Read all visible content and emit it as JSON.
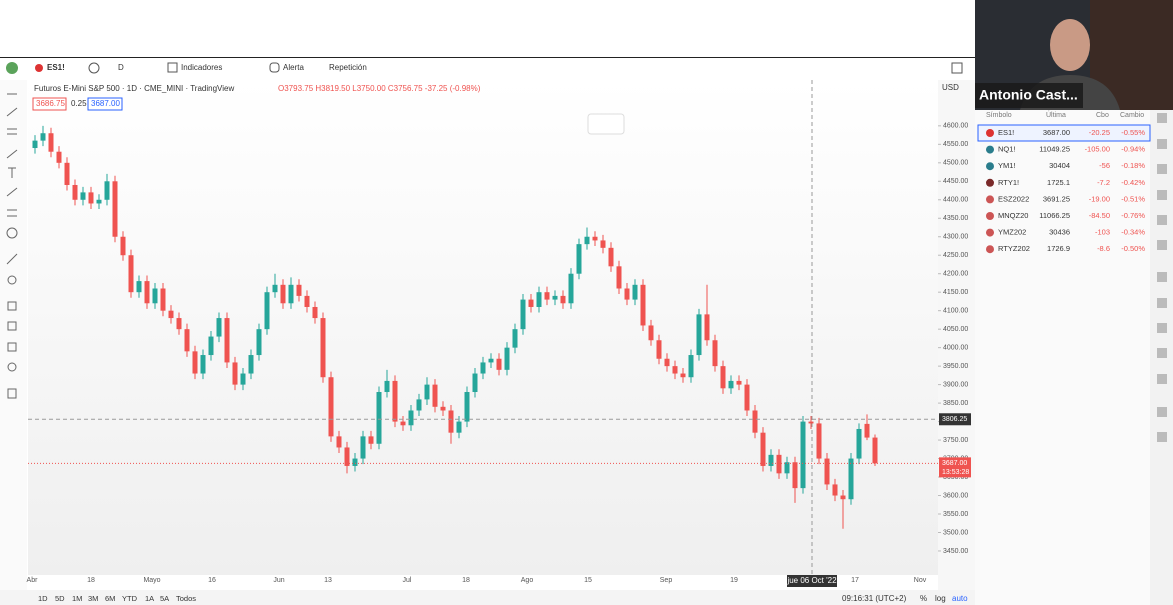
{
  "toolbar": {
    "symbol": "ES1!",
    "interval": "D",
    "indicators": "Indicadores",
    "alert": "Alerta",
    "replay": "Repetición"
  },
  "legend": {
    "title": "Futuros E-Mini S&P 500 · 1D · CME_MINI · TradingView",
    "ohlc": "O3793.75 H3819.50 L3750.00 C3756.75 -37.25 (-0.98%)",
    "bid": "3686.75",
    "spread": "0.25",
    "ask": "3687.00"
  },
  "chart_data": {
    "type": "candlestick",
    "currency": "USD",
    "up_color": "#26a69a",
    "down_color": "#ef5350",
    "ylim": [
      3385,
      4724
    ],
    "yticks": [
      {
        "value": 3450,
        "label": "3450.00"
      },
      {
        "value": 3500,
        "label": "3500.00"
      },
      {
        "value": 3550,
        "label": "3550.00"
      },
      {
        "value": 3600,
        "label": "3600.00"
      },
      {
        "value": 3650,
        "label": "3650.00"
      },
      {
        "value": 3700,
        "label": "3700.00"
      },
      {
        "value": 3750,
        "label": "3750.00"
      },
      {
        "value": 3800,
        "label": "3800.00"
      },
      {
        "value": 3850,
        "label": "3850.00"
      },
      {
        "value": 3900,
        "label": "3900.00"
      },
      {
        "value": 3950,
        "label": "3950.00"
      },
      {
        "value": 4000,
        "label": "4000.00"
      },
      {
        "value": 4050,
        "label": "4050.00"
      },
      {
        "value": 4100,
        "label": "4100.00"
      },
      {
        "value": 4150,
        "label": "4150.00"
      },
      {
        "value": 4200,
        "label": "4200.00"
      },
      {
        "value": 4250,
        "label": "4250.00"
      },
      {
        "value": 4300,
        "label": "4300.00"
      },
      {
        "value": 4350,
        "label": "4350.00"
      },
      {
        "value": 4400,
        "label": "4400.00"
      },
      {
        "value": 4450,
        "label": "4450.00"
      },
      {
        "value": 4500,
        "label": "4500.00"
      },
      {
        "value": 4550,
        "label": "4550.00"
      },
      {
        "value": 4600,
        "label": "4600.00"
      }
    ],
    "time_labels": [
      "Abr",
      "18",
      "Mayo",
      "16",
      "Jun",
      "13",
      "Jul",
      "18",
      "Ago",
      "15",
      "Sep",
      "19",
      "17",
      "Nov"
    ],
    "crosshair": {
      "date": "jue 06 Oct '22",
      "price": {
        "value": 3806.25,
        "label": "3806.25"
      }
    },
    "last_price": {
      "value": 3687,
      "label": "3687.00"
    },
    "countdown": "13:53:28",
    "ohlc": [
      [
        4540,
        4575,
        4525,
        4560
      ],
      [
        4560,
        4600,
        4545,
        4580
      ],
      [
        4580,
        4595,
        4515,
        4530
      ],
      [
        4530,
        4545,
        4485,
        4500
      ],
      [
        4500,
        4515,
        4425,
        4440
      ],
      [
        4440,
        4455,
        4385,
        4400
      ],
      [
        4400,
        4435,
        4385,
        4420
      ],
      [
        4420,
        4435,
        4375,
        4390
      ],
      [
        4390,
        4415,
        4375,
        4400
      ],
      [
        4400,
        4470,
        4385,
        4450
      ],
      [
        4450,
        4465,
        4285,
        4300
      ],
      [
        4300,
        4315,
        4235,
        4250
      ],
      [
        4250,
        4265,
        4135,
        4150
      ],
      [
        4150,
        4195,
        4135,
        4180
      ],
      [
        4180,
        4195,
        4105,
        4120
      ],
      [
        4120,
        4175,
        4105,
        4160
      ],
      [
        4160,
        4175,
        4085,
        4100
      ],
      [
        4100,
        4115,
        4065,
        4080
      ],
      [
        4080,
        4095,
        4035,
        4050
      ],
      [
        4050,
        4065,
        3975,
        3990
      ],
      [
        3990,
        4005,
        3915,
        3930
      ],
      [
        3930,
        3995,
        3915,
        3980
      ],
      [
        3980,
        4045,
        3965,
        4030
      ],
      [
        4030,
        4095,
        4015,
        4080
      ],
      [
        4080,
        4095,
        3945,
        3960
      ],
      [
        3960,
        3975,
        3885,
        3900
      ],
      [
        3900,
        3945,
        3885,
        3930
      ],
      [
        3930,
        3995,
        3915,
        3980
      ],
      [
        3980,
        4065,
        3965,
        4050
      ],
      [
        4050,
        4165,
        4035,
        4150
      ],
      [
        4150,
        4200,
        4135,
        4170
      ],
      [
        4170,
        4185,
        4105,
        4120
      ],
      [
        4120,
        4190,
        4105,
        4170
      ],
      [
        4170,
        4185,
        4125,
        4140
      ],
      [
        4140,
        4155,
        4095,
        4110
      ],
      [
        4110,
        4125,
        4065,
        4080
      ],
      [
        4080,
        4095,
        3905,
        3920
      ],
      [
        3920,
        3935,
        3745,
        3760
      ],
      [
        3760,
        3775,
        3715,
        3730
      ],
      [
        3730,
        3745,
        3660,
        3680
      ],
      [
        3680,
        3715,
        3665,
        3700
      ],
      [
        3700,
        3775,
        3685,
        3760
      ],
      [
        3760,
        3775,
        3725,
        3740
      ],
      [
        3740,
        3895,
        3725,
        3880
      ],
      [
        3880,
        3940,
        3865,
        3910
      ],
      [
        3910,
        3925,
        3785,
        3800
      ],
      [
        3800,
        3815,
        3775,
        3790
      ],
      [
        3790,
        3845,
        3775,
        3830
      ],
      [
        3830,
        3875,
        3815,
        3860
      ],
      [
        3860,
        3920,
        3845,
        3900
      ],
      [
        3900,
        3915,
        3825,
        3840
      ],
      [
        3840,
        3855,
        3815,
        3830
      ],
      [
        3830,
        3845,
        3740,
        3770
      ],
      [
        3770,
        3815,
        3755,
        3800
      ],
      [
        3800,
        3895,
        3785,
        3880
      ],
      [
        3880,
        3945,
        3865,
        3930
      ],
      [
        3930,
        3975,
        3915,
        3960
      ],
      [
        3960,
        3985,
        3945,
        3970
      ],
      [
        3970,
        3985,
        3925,
        3940
      ],
      [
        3940,
        4015,
        3925,
        4000
      ],
      [
        4000,
        4065,
        3985,
        4050
      ],
      [
        4050,
        4145,
        4035,
        4130
      ],
      [
        4130,
        4145,
        4095,
        4110
      ],
      [
        4110,
        4165,
        4095,
        4150
      ],
      [
        4150,
        4165,
        4115,
        4130
      ],
      [
        4130,
        4155,
        4115,
        4140
      ],
      [
        4140,
        4155,
        4105,
        4120
      ],
      [
        4120,
        4215,
        4105,
        4200
      ],
      [
        4200,
        4295,
        4185,
        4280
      ],
      [
        4280,
        4325,
        4265,
        4300
      ],
      [
        4300,
        4315,
        4275,
        4290
      ],
      [
        4290,
        4305,
        4255,
        4270
      ],
      [
        4270,
        4285,
        4205,
        4220
      ],
      [
        4220,
        4235,
        4145,
        4160
      ],
      [
        4160,
        4175,
        4115,
        4130
      ],
      [
        4130,
        4185,
        4115,
        4170
      ],
      [
        4170,
        4185,
        4045,
        4060
      ],
      [
        4060,
        4075,
        4005,
        4020
      ],
      [
        4020,
        4035,
        3955,
        3970
      ],
      [
        3970,
        3985,
        3935,
        3950
      ],
      [
        3950,
        3965,
        3915,
        3930
      ],
      [
        3930,
        3945,
        3905,
        3920
      ],
      [
        3920,
        3995,
        3905,
        3980
      ],
      [
        3980,
        4105,
        3965,
        4090
      ],
      [
        4090,
        4170,
        4005,
        4020
      ],
      [
        4020,
        4035,
        3935,
        3950
      ],
      [
        3950,
        3965,
        3875,
        3890
      ],
      [
        3890,
        3925,
        3875,
        3910
      ],
      [
        3910,
        3925,
        3885,
        3900
      ],
      [
        3900,
        3915,
        3815,
        3830
      ],
      [
        3830,
        3845,
        3755,
        3770
      ],
      [
        3770,
        3785,
        3665,
        3680
      ],
      [
        3680,
        3725,
        3665,
        3710
      ],
      [
        3710,
        3725,
        3645,
        3660
      ],
      [
        3660,
        3705,
        3645,
        3690
      ],
      [
        3690,
        3705,
        3580,
        3620
      ],
      [
        3620,
        3815,
        3605,
        3800
      ],
      [
        3800,
        3815,
        3780,
        3795
      ],
      [
        3795,
        3810,
        3685,
        3700
      ],
      [
        3700,
        3715,
        3615,
        3630
      ],
      [
        3630,
        3645,
        3585,
        3600
      ],
      [
        3600,
        3615,
        3510,
        3590
      ],
      [
        3590,
        3715,
        3575,
        3700
      ],
      [
        3700,
        3795,
        3685,
        3780
      ],
      [
        3793.75,
        3819.5,
        3750,
        3756.75
      ],
      [
        3756.75,
        3765,
        3680,
        3687
      ]
    ]
  },
  "watchlist": {
    "headers": [
      "Símbolo",
      "Última",
      "Cbo",
      "Cambio"
    ],
    "rows": [
      [
        "ES1!",
        "3687.00",
        "-20.25",
        "-0.55%"
      ],
      [
        "NQ1!",
        "11049.25",
        "-105.00",
        "-0.94%"
      ],
      [
        "YM1!",
        "30404",
        "-56",
        "-0.18%"
      ],
      [
        "RTY1!",
        "1725.1",
        "-7.2",
        "-0.42%"
      ],
      [
        "ESZ2022",
        "3691.25",
        "-19.00",
        "-0.51%"
      ],
      [
        "MNQZ20",
        "11066.25",
        "-84.50",
        "-0.76%"
      ],
      [
        "YMZ202",
        "30436",
        "-103",
        "-0.34%"
      ],
      [
        "RTYZ202",
        "1726.9",
        "-8.6",
        "-0.50%"
      ]
    ]
  },
  "video": {
    "name": "Antonio Cast..."
  },
  "bottom_bar": {
    "ranges": [
      "1D",
      "5D",
      "1M",
      "3M",
      "6M",
      "YTD",
      "1A",
      "5A",
      "Todos"
    ],
    "clock": "09:16:31 (UTC+2)",
    "percent": "%",
    "log": "log",
    "auto": "auto"
  }
}
